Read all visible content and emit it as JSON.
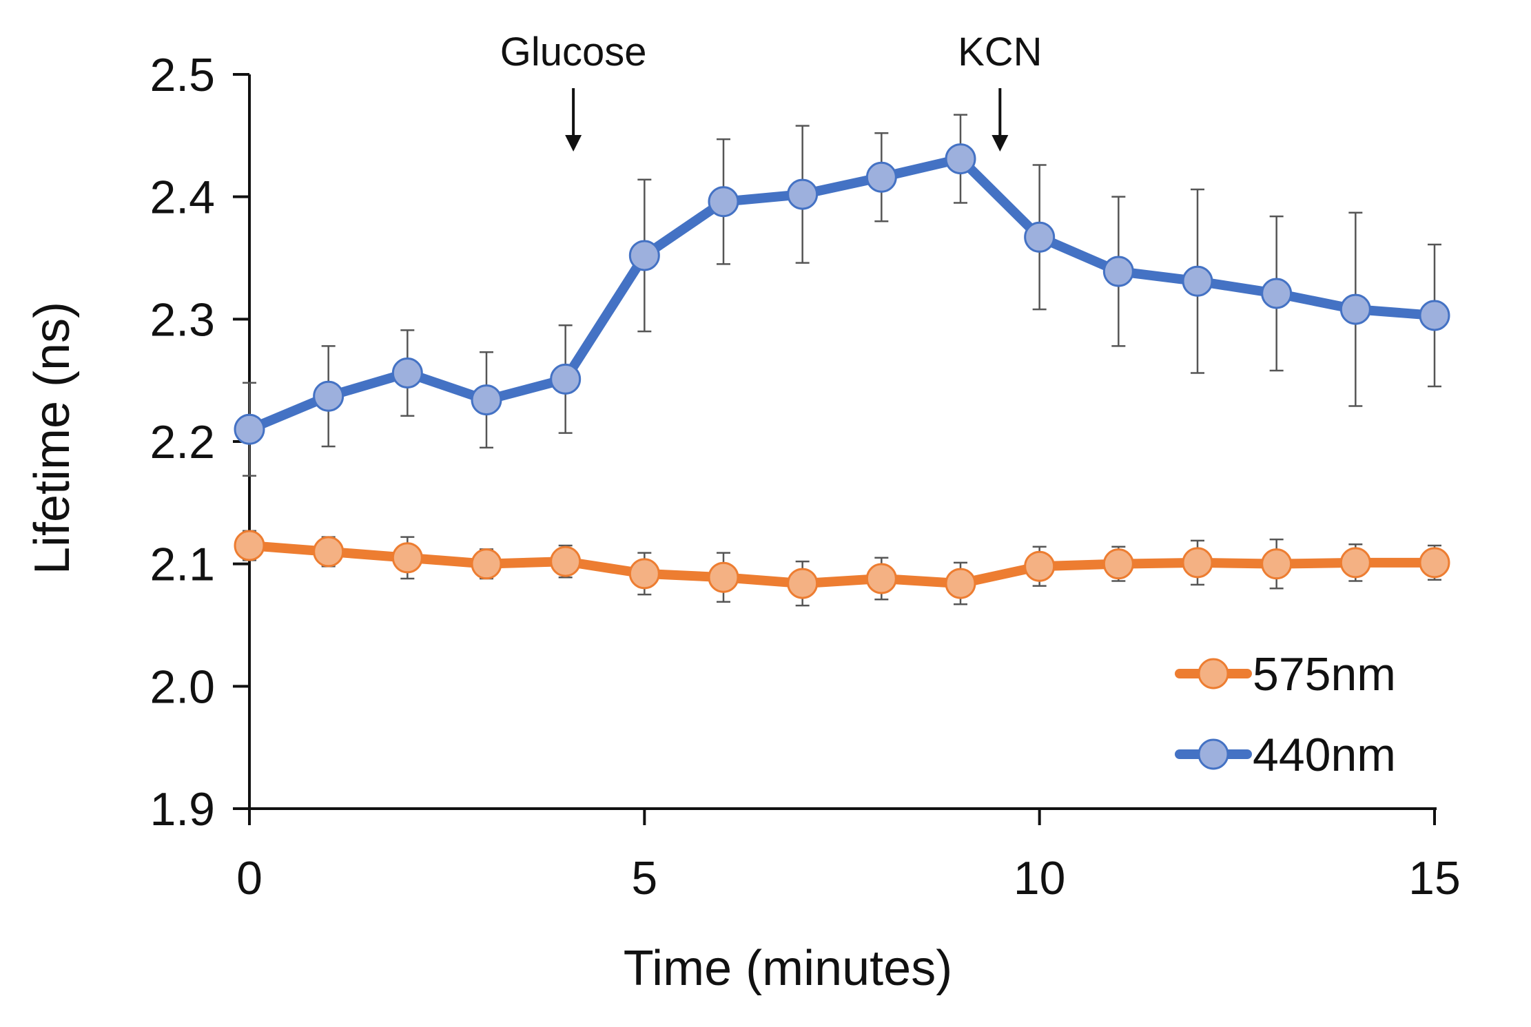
{
  "chart_data": {
    "type": "line",
    "title": "",
    "xlabel": "Time (minutes)",
    "ylabel": "Lifetime (ns)",
    "xlim": [
      0,
      15
    ],
    "ylim": [
      1.9,
      2.5
    ],
    "x_ticks": [
      0,
      5,
      10,
      15
    ],
    "x_tick_labels": [
      "0",
      "5",
      "10",
      "15"
    ],
    "y_ticks": [
      1.9,
      2.0,
      2.1,
      2.2,
      2.3,
      2.4,
      2.5
    ],
    "y_tick_labels": [
      "1.9",
      "2.0",
      "2.1",
      "2.2",
      "2.3",
      "2.4",
      "2.5"
    ],
    "grid": false,
    "legend_position": "bottom-right",
    "x": [
      0,
      1,
      2,
      3,
      4,
      5,
      6,
      7,
      8,
      9,
      10,
      11,
      12,
      13,
      14,
      15
    ],
    "series": [
      {
        "name": "575nm",
        "line_color": "#ED7D31",
        "marker_color": "#F4B183",
        "values": [
          2.115,
          2.11,
          2.105,
          2.1,
          2.102,
          2.092,
          2.089,
          2.084,
          2.088,
          2.084,
          2.098,
          2.1,
          2.101,
          2.1,
          2.101,
          2.101
        ],
        "errors": [
          0.012,
          0.012,
          0.017,
          0.012,
          0.013,
          0.017,
          0.02,
          0.018,
          0.017,
          0.017,
          0.016,
          0.014,
          0.018,
          0.02,
          0.015,
          0.014
        ]
      },
      {
        "name": "440nm",
        "line_color": "#4472C4",
        "marker_color": "#9DB0DD",
        "values": [
          2.21,
          2.237,
          2.256,
          2.234,
          2.251,
          2.352,
          2.396,
          2.402,
          2.416,
          2.431,
          2.367,
          2.339,
          2.331,
          2.321,
          2.308,
          2.303
        ],
        "errors": [
          0.038,
          0.041,
          0.035,
          0.039,
          0.044,
          0.062,
          0.051,
          0.056,
          0.036,
          0.036,
          0.059,
          0.061,
          0.075,
          0.063,
          0.079,
          0.058
        ]
      }
    ],
    "annotations": [
      {
        "text": "Glucose",
        "x": 4.1
      },
      {
        "text": "KCN",
        "x": 9.5
      }
    ]
  }
}
